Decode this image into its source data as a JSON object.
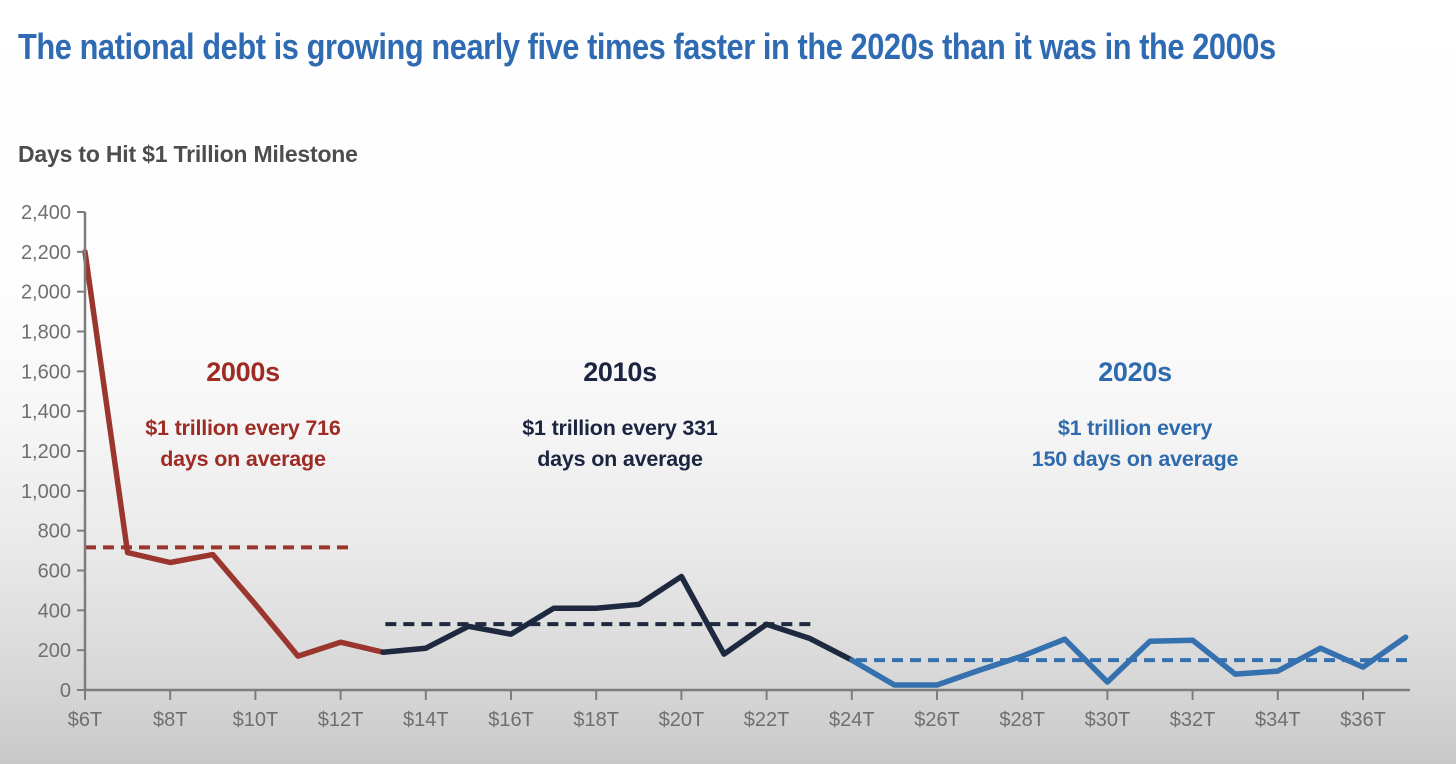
{
  "header": {
    "title": "The national debt is growing nearly five times faster in the 2020s than it was in the 2000s",
    "subtitle": "Days to Hit $1 Trillion Milestone"
  },
  "chart_data": {
    "type": "line",
    "title": "Days to Hit $1 Trillion Milestone",
    "xlabel": "",
    "ylabel": "",
    "ylim": [
      0,
      2400
    ],
    "y_ticks": [
      0,
      200,
      400,
      600,
      800,
      1000,
      1200,
      1400,
      1600,
      1800,
      2000,
      2200,
      2400
    ],
    "xlim": [
      6,
      37.3
    ],
    "x_ticks": [
      6,
      8,
      10,
      12,
      14,
      16,
      18,
      20,
      22,
      24,
      26,
      28,
      30,
      32,
      34,
      36
    ],
    "x_tick_prefix": "$",
    "x_tick_suffix": "T",
    "grid": false,
    "legend": "none",
    "series": [
      {
        "name": "2000s",
        "color": "#9b362e",
        "x": [
          6,
          7,
          8,
          9,
          10,
          11,
          12,
          13
        ],
        "values": [
          2200,
          690,
          640,
          680,
          430,
          170,
          240,
          190
        ],
        "average_days": 716,
        "average_line_style": "dashed",
        "average_span_x": [
          6,
          12.25
        ]
      },
      {
        "name": "2010s",
        "color": "#1e2940",
        "x": [
          13,
          14,
          15,
          16,
          17,
          18,
          19,
          20,
          21,
          22,
          23,
          24
        ],
        "values": [
          190,
          210,
          320,
          280,
          410,
          410,
          430,
          570,
          180,
          330,
          260,
          150
        ],
        "average_days": 331,
        "average_line_style": "dashed",
        "average_span_x": [
          13.05,
          23.1
        ]
      },
      {
        "name": "2020s",
        "color": "#3570af",
        "x": [
          24,
          25,
          26,
          27,
          28,
          29,
          30,
          31,
          32,
          33,
          34,
          35,
          36,
          37
        ],
        "values": [
          150,
          25,
          25,
          100,
          170,
          255,
          40,
          245,
          250,
          80,
          95,
          210,
          115,
          265
        ],
        "average_days": 150,
        "average_line_style": "dashed",
        "average_span_x": [
          24.1,
          37.2
        ]
      }
    ],
    "annotations": [
      {
        "heading": "2000s",
        "line1": "$1 trillion every 716",
        "line2": "days on average",
        "color": "#9e2b24"
      },
      {
        "heading": "2010s",
        "line1": "$1 trillion every 331",
        "line2": "days on average",
        "color": "#1b2540"
      },
      {
        "heading": "2020s",
        "line1": "$1 trillion every",
        "line2": "150 days on average",
        "color": "#2e6bae"
      }
    ],
    "style": {
      "title_color": "#2e6bb2",
      "subtitle_color": "#4d4d4d",
      "axis_color": "#7d7d7d",
      "tick_label_color": "#6f6f6f",
      "background_top": "#ffffff",
      "background_bottom": "#c8c8c8"
    }
  }
}
